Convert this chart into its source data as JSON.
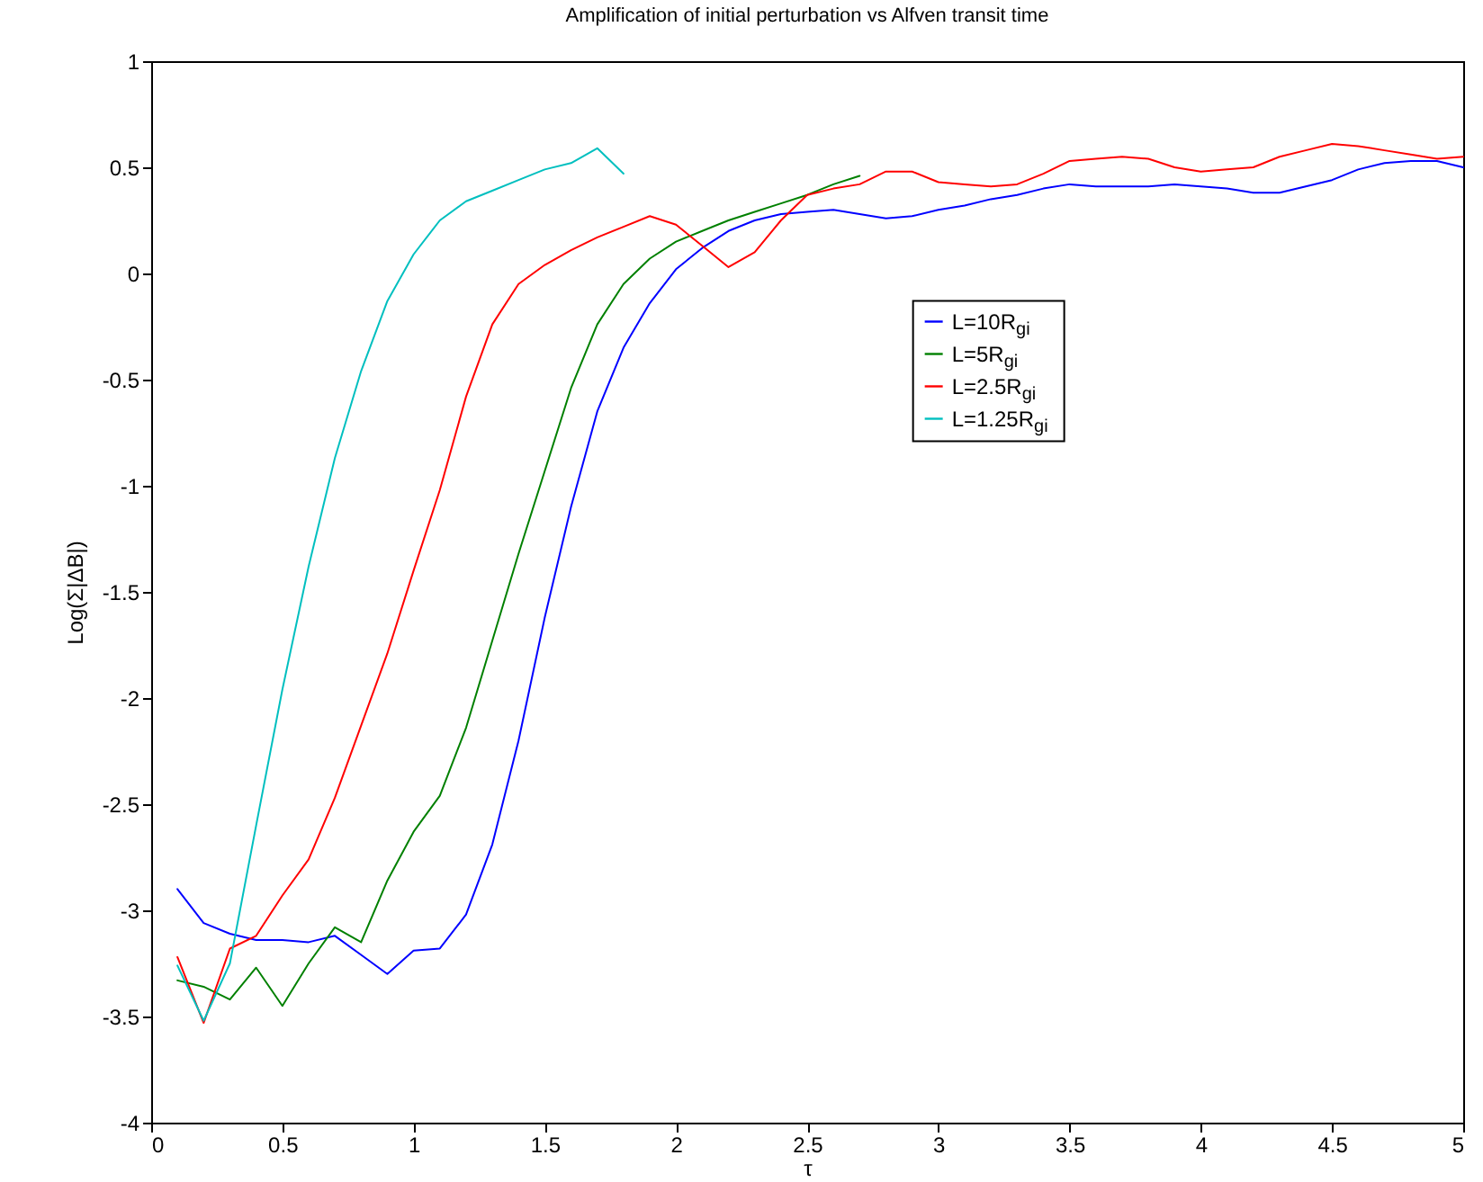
{
  "chart_data": {
    "type": "line",
    "title": "Amplification of initial perturbation vs Alfven transit time",
    "xlabel": "τ",
    "ylabel": "Log(Σ|ΔB|)",
    "xlim": [
      0,
      5
    ],
    "xticks": [
      0,
      0.5,
      1,
      1.5,
      2,
      2.5,
      3,
      3.5,
      4,
      4.5,
      5
    ],
    "ylim": [
      -4,
      1
    ],
    "yticks": [
      -4,
      -3.5,
      -3,
      -2.5,
      -2,
      -1.5,
      -1,
      -0.5,
      0,
      0.5,
      1
    ],
    "grid": false,
    "legend": "right",
    "line_style": "solid",
    "x": [
      0.1,
      0.2,
      0.3,
      0.4,
      0.5,
      0.6,
      0.7,
      0.8,
      0.9,
      1.0,
      1.1,
      1.2,
      1.3,
      1.4,
      1.5,
      1.6,
      1.7,
      1.8,
      1.9,
      2.0,
      2.1,
      2.2,
      2.3,
      2.4,
      2.5,
      2.6,
      2.7,
      2.8,
      2.9,
      3.0,
      3.1,
      3.2,
      3.3,
      3.4,
      3.5,
      3.6,
      3.7,
      3.8,
      3.9,
      4.0,
      4.1,
      4.2,
      4.3,
      4.4,
      4.5,
      4.6,
      4.7,
      4.8,
      4.9,
      5.0
    ],
    "series": [
      {
        "name": "L=10R$_{gi}$",
        "color": "#0000ff",
        "values": [
          -2.9,
          -3.06,
          -3.11,
          -3.14,
          -3.14,
          -3.15,
          -3.12,
          -3.21,
          -3.3,
          -3.19,
          -3.18,
          -3.02,
          -2.69,
          -2.2,
          -1.62,
          -1.1,
          -0.65,
          -0.35,
          -0.14,
          0.02,
          0.12,
          0.2,
          0.25,
          0.28,
          0.29,
          0.3,
          0.28,
          0.26,
          0.27,
          0.3,
          0.32,
          0.35,
          0.37,
          0.4,
          0.42,
          0.41,
          0.41,
          0.41,
          0.42,
          0.41,
          0.4,
          0.38,
          0.38,
          0.41,
          0.44,
          0.49,
          0.52,
          0.53,
          0.53,
          0.5
        ]
      },
      {
        "name": "L=5R$_{gi}$",
        "color": "#008000",
        "values": [
          -3.33,
          -3.36,
          -3.42,
          -3.27,
          -3.45,
          -3.25,
          -3.08,
          -3.15,
          -2.86,
          -2.63,
          -2.46,
          -2.14,
          -1.73,
          -1.32,
          -0.93,
          -0.54,
          -0.24,
          -0.05,
          0.07,
          0.15,
          0.2,
          0.25,
          0.29,
          0.33,
          0.37,
          0.42,
          0.46,
          null,
          null,
          null,
          null,
          null,
          null,
          null,
          null,
          null,
          null,
          null,
          null,
          null,
          null,
          null,
          null,
          null,
          null,
          null,
          null,
          null,
          null,
          null
        ]
      },
      {
        "name": "L=2.5R$_{gi}$",
        "color": "#ff0000",
        "values": [
          -3.22,
          -3.53,
          -3.18,
          -3.12,
          -2.93,
          -2.76,
          -2.47,
          -2.13,
          -1.79,
          -1.4,
          -1.02,
          -0.58,
          -0.24,
          -0.05,
          0.04,
          0.11,
          0.17,
          0.22,
          0.27,
          0.23,
          0.13,
          0.03,
          0.1,
          0.25,
          0.37,
          0.4,
          0.42,
          0.48,
          0.48,
          0.43,
          0.42,
          0.41,
          0.42,
          0.47,
          0.53,
          0.54,
          0.55,
          0.54,
          0.5,
          0.48,
          0.49,
          0.5,
          0.55,
          0.58,
          0.61,
          0.6,
          0.58,
          0.56,
          0.54,
          0.55
        ]
      },
      {
        "name": "L=1.25R$_{gi}$",
        "color": "#00bfbf",
        "values": [
          -3.26,
          -3.52,
          -3.25,
          -2.6,
          -1.96,
          -1.38,
          -0.87,
          -0.46,
          -0.13,
          0.09,
          0.25,
          0.34,
          0.39,
          0.44,
          0.49,
          0.52,
          0.59,
          0.47,
          null,
          null,
          null,
          null,
          null,
          null,
          null,
          null,
          null,
          null,
          null,
          null,
          null,
          null,
          null,
          null,
          null,
          null,
          null,
          null,
          null,
          null,
          null,
          null,
          null,
          null,
          null,
          null,
          null,
          null,
          null,
          null
        ]
      }
    ]
  }
}
